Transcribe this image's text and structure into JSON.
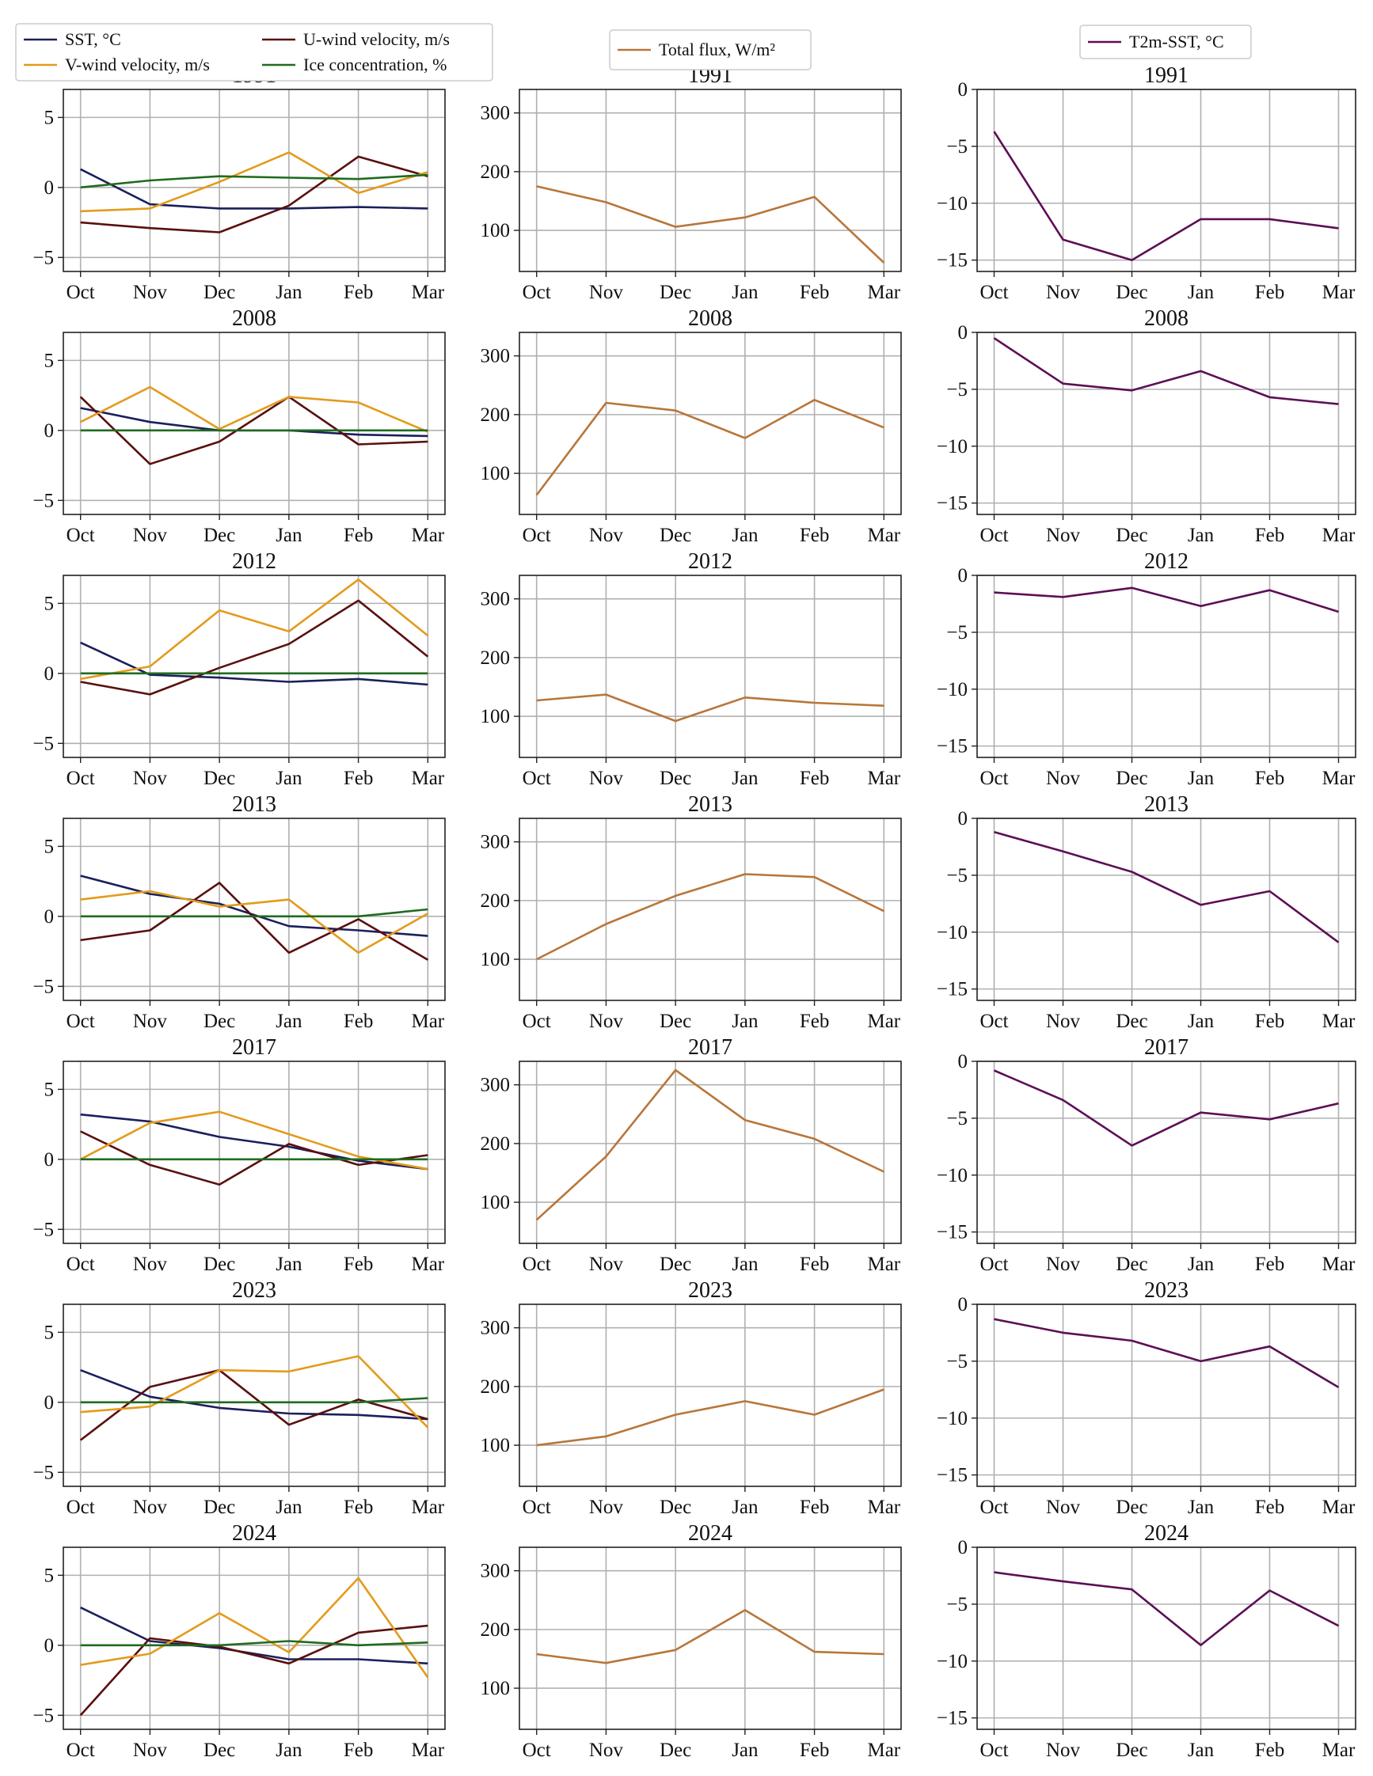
{
  "chart_data": {
    "type": "line",
    "months": [
      "Oct",
      "Nov",
      "Dec",
      "Jan",
      "Feb",
      "Mar"
    ],
    "colors": {
      "sst": "#1b1f5c",
      "uwind": "#5a0f0f",
      "vwind": "#e39b1b",
      "ice": "#1f6b1f",
      "flux": "#b8763a",
      "t2m": "#5c0f55"
    },
    "legends": {
      "left": [
        {
          "key": "sst",
          "label": "SST, °C"
        },
        {
          "key": "uwind",
          "label": "U-wind velocity, m/s"
        },
        {
          "key": "vwind",
          "label": "V-wind velocity, m/s"
        },
        {
          "key": "ice",
          "label": "Ice concentration, %"
        }
      ],
      "mid": [
        {
          "key": "flux",
          "label": "Total flux, W/m²"
        }
      ],
      "right": [
        {
          "key": "t2m",
          "label": "T2m-SST, °C"
        }
      ]
    },
    "axes": {
      "left": {
        "ylim": [
          -6,
          7
        ],
        "yticks": [
          -5,
          0,
          5
        ]
      },
      "mid": {
        "ylim": [
          30,
          340
        ],
        "yticks": [
          100,
          200,
          300
        ]
      },
      "right": {
        "ylim": [
          -16,
          0
        ],
        "yticks": [
          -15,
          -10,
          -5,
          0
        ]
      }
    },
    "panels": [
      {
        "year": "1991",
        "left": {
          "sst": [
            1.3,
            -1.2,
            -1.5,
            -1.5,
            -1.4,
            -1.5
          ],
          "uwind": [
            -2.5,
            -2.9,
            -3.2,
            -1.3,
            2.2,
            0.8
          ],
          "vwind": [
            -1.7,
            -1.5,
            0.4,
            2.5,
            -0.4,
            1.1
          ],
          "ice": [
            0.0,
            0.5,
            0.8,
            0.7,
            0.6,
            0.9
          ]
        },
        "mid": {
          "flux": [
            175,
            148,
            106,
            122,
            157,
            45
          ]
        },
        "right": {
          "t2m": [
            -3.7,
            -13.2,
            -15.0,
            -11.4,
            -11.4,
            -12.2
          ]
        }
      },
      {
        "year": "2008",
        "left": {
          "sst": [
            1.6,
            0.6,
            0.0,
            0.0,
            -0.3,
            -0.4
          ],
          "uwind": [
            2.4,
            -2.4,
            -0.8,
            2.4,
            -1.0,
            -0.8
          ],
          "vwind": [
            0.6,
            3.1,
            0.1,
            2.4,
            2.0,
            -0.1
          ],
          "ice": [
            0.0,
            0.0,
            0.0,
            0.0,
            0.0,
            0.0
          ]
        },
        "mid": {
          "flux": [
            63,
            220,
            207,
            160,
            225,
            178
          ]
        },
        "right": {
          "t2m": [
            -0.5,
            -4.5,
            -5.1,
            -3.4,
            -5.7,
            -6.3
          ]
        }
      },
      {
        "year": "2012",
        "left": {
          "sst": [
            2.2,
            -0.1,
            -0.3,
            -0.6,
            -0.4,
            -0.8
          ],
          "uwind": [
            -0.6,
            -1.5,
            0.4,
            2.1,
            5.2,
            1.2
          ],
          "vwind": [
            -0.4,
            0.5,
            4.5,
            3.0,
            6.7,
            2.7
          ],
          "ice": [
            0.0,
            0.0,
            0.0,
            0.0,
            0.0,
            0.0
          ]
        },
        "mid": {
          "flux": [
            127,
            137,
            92,
            132,
            123,
            118
          ]
        },
        "right": {
          "t2m": [
            -1.5,
            -1.9,
            -1.1,
            -2.7,
            -1.3,
            -3.2
          ]
        }
      },
      {
        "year": "2013",
        "left": {
          "sst": [
            2.9,
            1.6,
            0.9,
            -0.7,
            -1.0,
            -1.4
          ],
          "uwind": [
            -1.7,
            -1.0,
            2.4,
            -2.6,
            -0.2,
            -3.1
          ],
          "vwind": [
            1.2,
            1.8,
            0.7,
            1.2,
            -2.6,
            0.2
          ],
          "ice": [
            0.0,
            0.0,
            0.0,
            0.0,
            0.0,
            0.5
          ]
        },
        "mid": {
          "flux": [
            100,
            160,
            208,
            245,
            240,
            182
          ]
        },
        "right": {
          "t2m": [
            -1.2,
            -2.9,
            -4.7,
            -7.6,
            -6.4,
            -10.9
          ]
        }
      },
      {
        "year": "2017",
        "left": {
          "sst": [
            3.2,
            2.7,
            1.6,
            0.9,
            -0.1,
            -0.7
          ],
          "uwind": [
            2.0,
            -0.4,
            -1.8,
            1.1,
            -0.4,
            0.3
          ],
          "vwind": [
            0.0,
            2.6,
            3.4,
            1.8,
            0.2,
            -0.7
          ],
          "ice": [
            0.0,
            0.0,
            0.0,
            0.0,
            0.0,
            0.0
          ]
        },
        "mid": {
          "flux": [
            70,
            178,
            325,
            240,
            208,
            152
          ]
        },
        "right": {
          "t2m": [
            -0.8,
            -3.4,
            -7.4,
            -4.5,
            -5.1,
            -3.7
          ]
        }
      },
      {
        "year": "2023",
        "left": {
          "sst": [
            2.3,
            0.4,
            -0.4,
            -0.8,
            -0.9,
            -1.2
          ],
          "uwind": [
            -2.7,
            1.1,
            2.3,
            -1.6,
            0.2,
            -1.2
          ],
          "vwind": [
            -0.7,
            -0.3,
            2.3,
            2.2,
            3.3,
            -1.8
          ],
          "ice": [
            0.0,
            0.0,
            0.0,
            0.0,
            0.0,
            0.3
          ]
        },
        "mid": {
          "flux": [
            100,
            115,
            152,
            175,
            152,
            195
          ]
        },
        "right": {
          "t2m": [
            -1.3,
            -2.5,
            -3.2,
            -5.0,
            -3.7,
            -7.3
          ]
        }
      },
      {
        "year": "2024",
        "left": {
          "sst": [
            2.7,
            0.3,
            -0.2,
            -1.0,
            -1.0,
            -1.3
          ],
          "uwind": [
            -5.0,
            0.5,
            -0.1,
            -1.3,
            0.9,
            1.4
          ],
          "vwind": [
            -1.4,
            -0.6,
            2.3,
            -0.5,
            4.8,
            -2.3
          ],
          "ice": [
            0.0,
            0.0,
            0.0,
            0.3,
            0.0,
            0.2
          ]
        },
        "mid": {
          "flux": [
            158,
            143,
            165,
            233,
            162,
            158
          ]
        },
        "right": {
          "t2m": [
            -2.2,
            -3.0,
            -3.7,
            -8.6,
            -3.8,
            -6.9
          ]
        }
      }
    ]
  }
}
